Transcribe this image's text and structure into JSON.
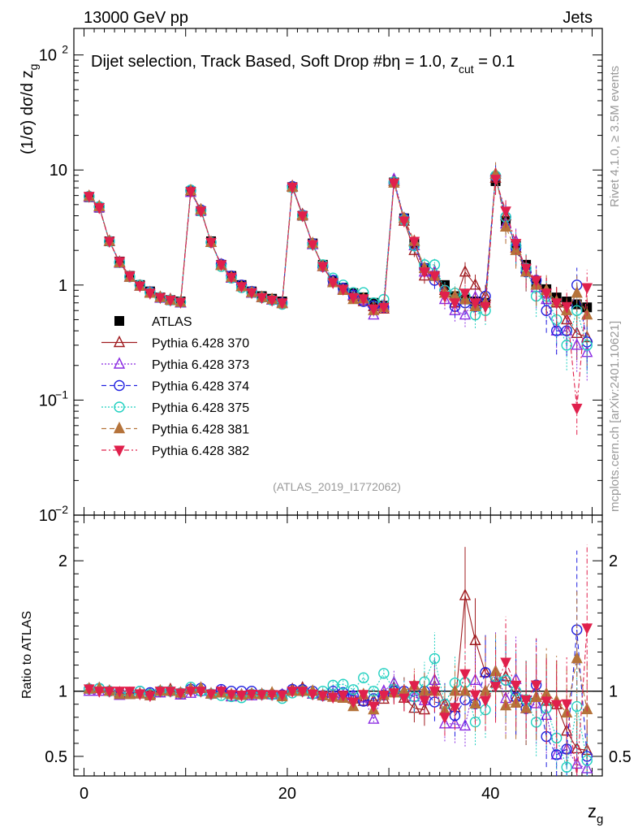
{
  "header": {
    "left": "13000 GeV pp",
    "right": "Jets"
  },
  "side": {
    "rivet": "Rivet 4.1.0, ≥ 3.5M events",
    "mcplots": "mcplots.cern.ch [arXiv:2401.10621]"
  },
  "chart_data": [
    {
      "type": "scatter",
      "panel": "main",
      "title": "Dijet selection, Track Based, Soft Drop #bη = 1.0, z_cut = 0.1",
      "title_parts": {
        "main": "Dijet selection, Track Based, Soft Drop #bη = 1.0, z",
        "sub": "cut",
        "tail": " = 0.1"
      },
      "ylabel": "(1/σ) dσ/d z_g",
      "ylabel_parts": {
        "main": "(1/σ) dσ/d z",
        "sub": "g"
      },
      "xlabel": "z_g",
      "xlabel_parts": {
        "main": "z",
        "sub": "g"
      },
      "yscale": "log",
      "ylim": [
        0.01,
        170
      ],
      "xlim": [
        -1,
        51
      ],
      "x_ticks": [
        0,
        20,
        40
      ],
      "y_ticks": [
        {
          "value": 100,
          "label": "10",
          "exp": "2"
        },
        {
          "value": 10,
          "label": "10",
          "exp": ""
        },
        {
          "value": 1,
          "label": "1",
          "exp": ""
        },
        {
          "value": 0.1,
          "label": "10",
          "exp": "−1"
        },
        {
          "value": 0.01,
          "label": "10",
          "exp": "−2"
        }
      ],
      "watermark": "(ATLAS_2019_I1772062)",
      "legend_position": "middle-left",
      "x": [
        0.5,
        1.5,
        2.5,
        3.5,
        4.5,
        5.5,
        6.5,
        7.5,
        8.5,
        9.5,
        10.5,
        11.5,
        12.5,
        13.5,
        14.5,
        15.5,
        16.5,
        17.5,
        18.5,
        19.5,
        20.5,
        21.5,
        22.5,
        23.5,
        24.5,
        25.5,
        26.5,
        27.5,
        28.5,
        29.5,
        30.5,
        31.5,
        32.5,
        33.5,
        34.5,
        35.5,
        36.5,
        37.5,
        38.5,
        39.5,
        40.5,
        41.5,
        42.5,
        43.5,
        44.5,
        45.5,
        46.5,
        47.5,
        48.5,
        49.5
      ],
      "series": [
        {
          "name": "ATLAS",
          "color": "#000000",
          "marker": "square-filled",
          "line": "none",
          "values": [
            5.8,
            4.7,
            2.4,
            1.6,
            1.2,
            1.0,
            0.88,
            0.78,
            0.74,
            0.72,
            6.5,
            4.4,
            2.4,
            1.5,
            1.2,
            1.0,
            0.88,
            0.8,
            0.76,
            0.72,
            7.1,
            4.0,
            2.3,
            1.5,
            1.1,
            0.95,
            0.85,
            0.78,
            0.7,
            0.66,
            7.8,
            3.8,
            2.3,
            1.4,
            1.2,
            1.0,
            0.8,
            0.75,
            0.72,
            0.7,
            8.0,
            3.6,
            2.2,
            1.5,
            1.05,
            0.92,
            0.78,
            0.72,
            0.68,
            0.64
          ]
        },
        {
          "name": "Pythia 6.428 370",
          "color": "#a01c20",
          "marker": "triangle-up-open",
          "line": "solid",
          "values": [
            5.9,
            4.8,
            2.4,
            1.58,
            1.18,
            0.98,
            0.86,
            0.78,
            0.75,
            0.7,
            6.6,
            4.5,
            2.35,
            1.5,
            1.15,
            0.97,
            0.86,
            0.78,
            0.74,
            0.7,
            7.2,
            4.1,
            2.25,
            1.45,
            1.05,
            0.9,
            0.8,
            0.72,
            0.65,
            0.62,
            8.0,
            3.6,
            2.0,
            1.2,
            1.3,
            0.9,
            0.7,
            1.3,
            1.0,
            0.8,
            8.5,
            4.0,
            2.1,
            1.4,
            1.0,
            0.85,
            0.7,
            0.5,
            0.38,
            0.35
          ]
        },
        {
          "name": "Pythia 6.428 373",
          "color": "#8a2be2",
          "marker": "triangle-up-open",
          "line": "dotted",
          "values": [
            5.8,
            4.7,
            2.4,
            1.55,
            1.17,
            0.98,
            0.85,
            0.77,
            0.74,
            0.7,
            6.4,
            4.4,
            2.35,
            1.5,
            1.15,
            0.97,
            0.85,
            0.78,
            0.74,
            0.7,
            7.1,
            4.0,
            2.25,
            1.45,
            1.08,
            0.92,
            0.82,
            0.74,
            0.55,
            0.66,
            8.3,
            3.8,
            2.2,
            1.3,
            1.3,
            0.75,
            0.6,
            0.55,
            0.78,
            0.7,
            9.2,
            3.4,
            2.4,
            1.3,
            0.95,
            0.75,
            0.4,
            0.4,
            0.3,
            0.26
          ]
        },
        {
          "name": "Pythia 6.428 374",
          "color": "#2020e0",
          "marker": "circle-open",
          "line": "dashed",
          "values": [
            5.9,
            4.8,
            2.4,
            1.58,
            1.18,
            1.0,
            0.87,
            0.78,
            0.74,
            0.71,
            6.6,
            4.5,
            2.35,
            1.52,
            1.2,
            1.0,
            0.88,
            0.78,
            0.74,
            0.7,
            7.2,
            4.05,
            2.3,
            1.45,
            1.1,
            0.94,
            0.82,
            0.72,
            0.66,
            0.64,
            7.8,
            3.8,
            2.2,
            1.4,
            1.1,
            0.9,
            0.65,
            0.7,
            0.65,
            0.8,
            8.8,
            3.9,
            2.1,
            1.3,
            1.1,
            0.6,
            0.4,
            0.4,
            1.0,
            0.32
          ]
        },
        {
          "name": "Pythia 6.428 375",
          "color": "#20d0c0",
          "marker": "circle-open",
          "line": "dotted",
          "values": [
            5.9,
            4.8,
            2.4,
            1.57,
            1.18,
            1.0,
            0.86,
            0.78,
            0.74,
            0.71,
            6.7,
            4.4,
            2.35,
            1.45,
            1.15,
            0.95,
            0.86,
            0.78,
            0.74,
            0.68,
            7.0,
            4.0,
            2.25,
            1.5,
            1.15,
            1.0,
            0.86,
            0.86,
            0.7,
            0.75,
            7.9,
            3.7,
            2.2,
            1.5,
            1.5,
            0.9,
            0.85,
            0.8,
            0.55,
            0.6,
            8.9,
            3.9,
            2.2,
            1.4,
            0.8,
            0.8,
            0.5,
            0.3,
            0.6,
            0.3
          ]
        },
        {
          "name": "Pythia 6.428 381",
          "color": "#b5733a",
          "marker": "triangle-up-filled",
          "line": "dashed",
          "values": [
            5.9,
            4.8,
            2.4,
            1.56,
            1.17,
            0.98,
            0.85,
            0.78,
            0.74,
            0.71,
            6.6,
            4.5,
            2.35,
            1.48,
            1.17,
            0.97,
            0.86,
            0.78,
            0.75,
            0.69,
            7.1,
            4.0,
            2.3,
            1.45,
            1.05,
            0.9,
            0.75,
            0.76,
            0.6,
            0.64,
            7.7,
            3.8,
            2.4,
            1.4,
            1.2,
            0.85,
            0.8,
            0.75,
            0.65,
            0.7,
            9.2,
            3.2,
            2.0,
            1.3,
            1.0,
            0.9,
            0.72,
            0.6,
            0.85,
            0.55
          ]
        },
        {
          "name": "Pythia 6.428 382",
          "color": "#e0204c",
          "marker": "triangle-down-filled",
          "line": "dashdot",
          "values": [
            5.9,
            4.7,
            2.4,
            1.6,
            1.2,
            0.98,
            0.85,
            0.78,
            0.74,
            0.71,
            6.5,
            4.4,
            2.35,
            1.5,
            1.17,
            0.97,
            0.86,
            0.78,
            0.74,
            0.7,
            7.1,
            4.0,
            2.25,
            1.45,
            1.05,
            0.92,
            0.78,
            0.76,
            0.62,
            0.64,
            7.7,
            3.6,
            2.4,
            1.3,
            1.2,
            0.8,
            0.7,
            0.85,
            0.7,
            0.65,
            8.3,
            4.4,
            2.3,
            1.4,
            1.1,
            0.85,
            0.7,
            0.65,
            0.085,
            0.95
          ]
        }
      ]
    },
    {
      "type": "scatter",
      "panel": "ratio",
      "ylabel": "Ratio to ATLAS",
      "xlabel": "z_g",
      "ylim": [
        0.35,
        2.35
      ],
      "xlim": [
        -1,
        51
      ],
      "x_ticks": [
        0,
        20,
        40
      ],
      "y_ticks": [
        0.5,
        1,
        2
      ],
      "y_tick_labels": [
        "0.5",
        "1",
        "2"
      ],
      "reference_line": 1,
      "series_note": "ratio of each Pythia series to ATLAS, same x bins as the main panel"
    }
  ]
}
